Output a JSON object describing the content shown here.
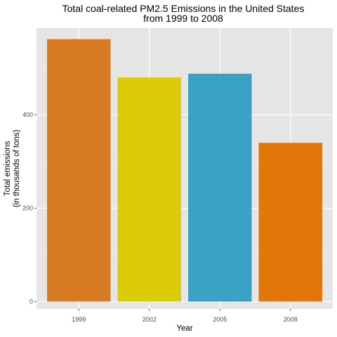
{
  "chart_data": {
    "type": "bar",
    "title_lines": [
      "Total coal-related PM2.5 Emissions in the United States",
      "from 1999 to 2008"
    ],
    "xlabel": "Year",
    "ylabel_lines": [
      "Total emissions",
      "(in thousands of tons)"
    ],
    "categories": [
      "1999",
      "2002",
      "2005",
      "2008"
    ],
    "values": [
      562,
      480,
      488,
      340
    ],
    "bar_colors": [
      "#d67b23",
      "#dccb09",
      "#3ba1c4",
      "#e07708"
    ],
    "ylim": [
      0,
      590
    ],
    "yticks": [
      0,
      200,
      400
    ],
    "ytick_labels": [
      "0",
      "200",
      "400"
    ],
    "grid": true,
    "background": "#e5e5e5"
  }
}
